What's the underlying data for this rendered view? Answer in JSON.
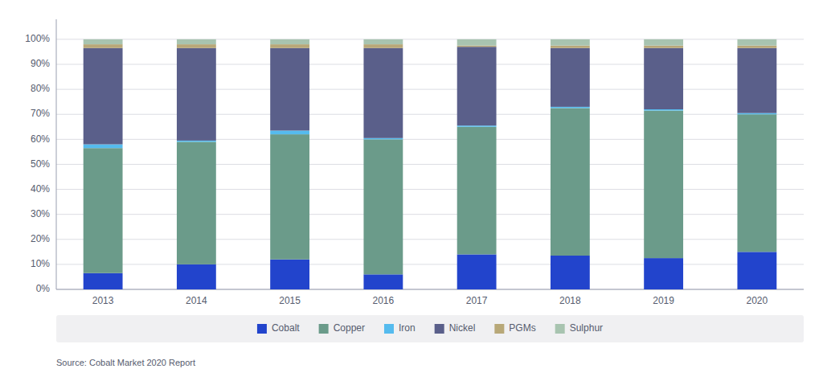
{
  "chart_data": {
    "type": "bar",
    "stacked": true,
    "categories": [
      "2013",
      "2014",
      "2015",
      "2016",
      "2017",
      "2018",
      "2019",
      "2020"
    ],
    "series": [
      {
        "name": "Cobalt",
        "color": "#2244CC",
        "values": [
          6.5,
          10.0,
          12.0,
          6.0,
          14.0,
          13.5,
          12.5,
          15.0
        ]
      },
      {
        "name": "Copper",
        "color": "#6B9B8A",
        "values": [
          50.0,
          49.0,
          50.0,
          54.0,
          51.0,
          59.0,
          59.0,
          55.0
        ]
      },
      {
        "name": "Iron",
        "color": "#55BBEE",
        "values": [
          1.5,
          0.5,
          1.5,
          0.5,
          0.5,
          0.5,
          0.5,
          0.5
        ]
      },
      {
        "name": "Nickel",
        "color": "#5A5F8A",
        "values": [
          38.5,
          37.0,
          33.0,
          36.0,
          31.5,
          23.5,
          24.5,
          26.0
        ]
      },
      {
        "name": "PGMs",
        "color": "#B8A878",
        "values": [
          1.5,
          1.5,
          1.5,
          1.5,
          0.5,
          1.0,
          1.0,
          1.0
        ]
      },
      {
        "name": "Sulphur",
        "color": "#A8C4B0",
        "values": [
          2.0,
          2.0,
          2.0,
          2.0,
          2.5,
          2.5,
          2.5,
          2.5
        ]
      }
    ],
    "ylim": [
      0,
      108
    ],
    "yticks": [
      {
        "value": 0,
        "label": "0%"
      },
      {
        "value": 10,
        "label": "10%"
      },
      {
        "value": 20,
        "label": "20%"
      },
      {
        "value": 30,
        "label": "30%"
      },
      {
        "value": 40,
        "label": "40%"
      },
      {
        "value": 50,
        "label": "50%"
      },
      {
        "value": 60,
        "label": "60%"
      },
      {
        "value": 70,
        "label": "70%"
      },
      {
        "value": 80,
        "label": "80%"
      },
      {
        "value": 90,
        "label": "90%"
      },
      {
        "value": 100,
        "label": "100%"
      }
    ],
    "grid": true,
    "legend": "bottom",
    "source": "Source: Cobalt Market 2020 Report"
  }
}
